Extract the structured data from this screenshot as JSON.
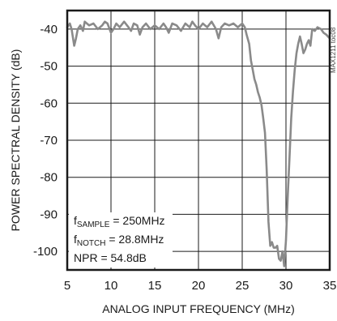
{
  "chart_data": {
    "type": "line",
    "title": "",
    "xlabel": "ANALOG INPUT FREQUENCY (MHz)",
    "ylabel": "POWER SPECTRAL DENSITY (dB)",
    "xlim": [
      5,
      35
    ],
    "ylim": [
      -105,
      -35
    ],
    "x_ticks": [
      5,
      10,
      15,
      20,
      25,
      30,
      35
    ],
    "y_ticks": [
      -40,
      -50,
      -60,
      -70,
      -80,
      -90,
      -100
    ],
    "grid": true,
    "line_color": "#8a8a8a",
    "annotations": {
      "sample": {
        "main": "f",
        "sub": "SAMPLE",
        "rest": " = 250MHz"
      },
      "notch": {
        "main": "f",
        "sub": "NOTCH",
        "rest": " = 28.8MHz"
      },
      "npr": "NPR = 54.8dB"
    },
    "side_code": "MAX1211 toc08",
    "series": [
      {
        "x": [
          5.0,
          5.3,
          5.5,
          5.8,
          6.0,
          6.2,
          6.5,
          6.8,
          7.0,
          7.5,
          8.0,
          8.5,
          9.0,
          9.3,
          9.6,
          10.0,
          10.3,
          10.6,
          11.0,
          11.5,
          12.0,
          12.3,
          12.6,
          13.0,
          13.3,
          13.6,
          14.0,
          14.5,
          15.0,
          15.5,
          16.0,
          16.3,
          16.6,
          17.0,
          17.5,
          18.0,
          18.5,
          19.0,
          19.3,
          19.6,
          20.0,
          20.5,
          21.0,
          21.5,
          22.0,
          22.3,
          22.6,
          23.0,
          23.5,
          24.0,
          24.5,
          25.0,
          25.3,
          25.5,
          25.8,
          26.0,
          26.2,
          26.4,
          26.6,
          26.8,
          27.0,
          27.2,
          27.4,
          27.6,
          27.8,
          28.0,
          28.2,
          28.4,
          28.6,
          28.8,
          29.0,
          29.2,
          29.4,
          29.6,
          29.8,
          30.0,
          30.2,
          30.4,
          30.6,
          30.8,
          31.0,
          31.2,
          31.4,
          31.6,
          31.8,
          32.0,
          32.2,
          32.4,
          32.6,
          32.8,
          33.0,
          33.3,
          33.6,
          34.0,
          34.3,
          34.6,
          35.0
        ],
        "values": [
          -39.5,
          -38.5,
          -40.0,
          -44.5,
          -42.5,
          -40.0,
          -39.0,
          -40.5,
          -38.0,
          -39.0,
          -38.5,
          -40.0,
          -39.0,
          -38.0,
          -38.5,
          -41.0,
          -40.0,
          -38.5,
          -39.5,
          -38.0,
          -39.5,
          -40.5,
          -38.5,
          -39.0,
          -41.5,
          -39.5,
          -38.5,
          -40.0,
          -39.0,
          -40.0,
          -38.5,
          -39.5,
          -41.0,
          -38.5,
          -39.0,
          -40.5,
          -38.5,
          -39.5,
          -38.0,
          -39.0,
          -40.0,
          -38.5,
          -39.5,
          -38.0,
          -40.0,
          -42.5,
          -39.5,
          -38.5,
          -39.0,
          -38.5,
          -39.5,
          -38.5,
          -39.5,
          -41.5,
          -44.0,
          -48.5,
          -51.0,
          -53.5,
          -55.0,
          -57.0,
          -58.5,
          -60.5,
          -64.0,
          -68.0,
          -78.0,
          -92.0,
          -98.5,
          -97.5,
          -99.0,
          -99.0,
          -98.5,
          -102.0,
          -102.5,
          -100.0,
          -104.0,
          -97.0,
          -85.0,
          -75.0,
          -64.0,
          -57.0,
          -51.0,
          -46.5,
          -44.0,
          -42.0,
          -44.0,
          -46.5,
          -45.5,
          -44.0,
          -43.0,
          -44.5,
          -40.0,
          -40.5,
          -39.5,
          -40.0,
          -41.0,
          -41.5,
          -42.5
        ]
      }
    ]
  }
}
